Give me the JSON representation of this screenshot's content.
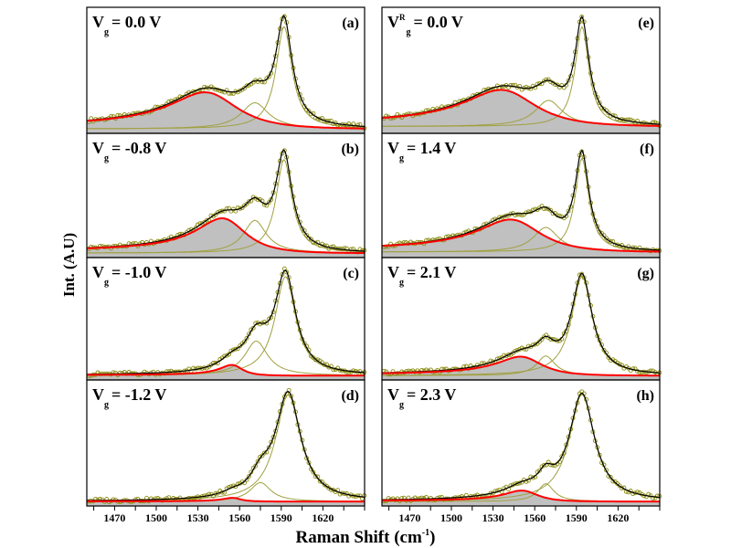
{
  "chart_data": {
    "type": "line",
    "layout": "4 rows x 2 columns of stacked spectra panels",
    "xlabel": {
      "main": "Raman Shift (cm",
      "sup": "-1",
      "end": ")"
    },
    "ylabel": "Int. (A.U)",
    "xlim": [
      1450,
      1650
    ],
    "xtick_labels": [
      "1470",
      "1500",
      "1530",
      "1560",
      "1590",
      "1620"
    ],
    "xtick_values": [
      1470,
      1500,
      1530,
      1560,
      1590,
      1620
    ],
    "minor_tick_step": 15,
    "ylim": [
      0,
      1
    ],
    "grid": false,
    "colors": {
      "data_points": "#8c8c14",
      "components": "#a0a040",
      "total_fit": "#000000",
      "bwf_component": "#ff0000",
      "bwf_fill": "#c0c0c0"
    },
    "panels": [
      {
        "letter": "(a)",
        "v": "V",
        "sup": "",
        "sub": "g",
        "value": "= 0.0 V",
        "baseline": 0.03,
        "bwf": {
          "center": 1540,
          "hwhm": 30,
          "height": 0.3,
          "q": -6
        },
        "lorentz_mid": {
          "center": 1571,
          "hwhm": 12,
          "height": 0.22
        },
        "lorentz_g": {
          "center": 1592,
          "hwhm": 7,
          "height": 0.86
        }
      },
      {
        "letter": "(b)",
        "v": "V",
        "sup": "",
        "sub": "g",
        "value": "= -0.8 V",
        "baseline": 0.03,
        "bwf": {
          "center": 1551,
          "hwhm": 22,
          "height": 0.29,
          "q": -6
        },
        "lorentz_mid": {
          "center": 1571,
          "hwhm": 10,
          "height": 0.28
        },
        "lorentz_g": {
          "center": 1592,
          "hwhm": 7,
          "height": 0.8
        }
      },
      {
        "letter": "(c)",
        "v": "V",
        "sup": "",
        "sub": "g",
        "value": "= -1.0 V",
        "baseline": 0.03,
        "bwf": {
          "center": 1556,
          "hwhm": 10,
          "height": 0.09,
          "q": -6
        },
        "lorentz_mid": {
          "center": 1572,
          "hwhm": 10,
          "height": 0.3
        },
        "lorentz_g": {
          "center": 1593,
          "hwhm": 9,
          "height": 0.86
        }
      },
      {
        "letter": "(d)",
        "v": "V",
        "sup": "",
        "sub": "g",
        "value": "= -1.2 V",
        "baseline": 0.03,
        "bwf": {
          "center": 1556,
          "hwhm": 8,
          "height": 0.03,
          "q": -6
        },
        "lorentz_mid": {
          "center": 1575,
          "hwhm": 9,
          "height": 0.16
        },
        "lorentz_g": {
          "center": 1595,
          "hwhm": 11,
          "height": 0.9
        }
      },
      {
        "letter": "(e)",
        "v": "V",
        "sup": "R",
        "sub": "g",
        "value": "= 0.0 V",
        "baseline": 0.05,
        "bwf": {
          "center": 1541,
          "hwhm": 32,
          "height": 0.3,
          "q": -6
        },
        "lorentz_mid": {
          "center": 1570,
          "hwhm": 12,
          "height": 0.22
        },
        "lorentz_g": {
          "center": 1594,
          "hwhm": 6,
          "height": 0.84
        }
      },
      {
        "letter": "(f)",
        "v": "V",
        "sup": "",
        "sub": "g",
        "value": "= 1.4 V",
        "baseline": 0.04,
        "bwf": {
          "center": 1547,
          "hwhm": 28,
          "height": 0.27,
          "q": -6
        },
        "lorentz_mid": {
          "center": 1568,
          "hwhm": 11,
          "height": 0.21
        },
        "lorentz_g": {
          "center": 1594,
          "hwhm": 6,
          "height": 0.8
        }
      },
      {
        "letter": "(g)",
        "v": "V",
        "sup": "",
        "sub": "g",
        "value": "= 2.1 V",
        "baseline": 0.03,
        "bwf": {
          "center": 1553,
          "hwhm": 20,
          "height": 0.16,
          "q": -6
        },
        "lorentz_mid": {
          "center": 1568,
          "hwhm": 8,
          "height": 0.17
        },
        "lorentz_g": {
          "center": 1594,
          "hwhm": 9,
          "height": 0.86
        }
      },
      {
        "letter": "(h)",
        "v": "V",
        "sup": "",
        "sub": "g",
        "value": "= 2.3 V",
        "baseline": 0.03,
        "bwf": {
          "center": 1553,
          "hwhm": 15,
          "height": 0.09,
          "q": -6
        },
        "lorentz_mid": {
          "center": 1568,
          "hwhm": 7,
          "height": 0.15
        },
        "lorentz_g": {
          "center": 1594,
          "hwhm": 11,
          "height": 0.9
        }
      }
    ]
  }
}
